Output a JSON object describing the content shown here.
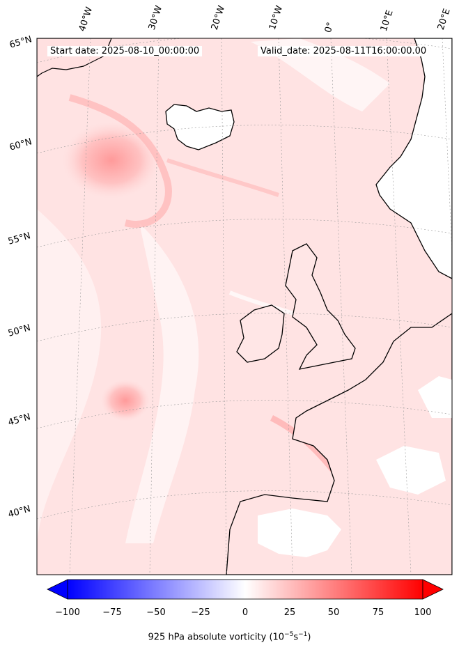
{
  "map": {
    "start_date": "Start date: 2025-08-10_00:00:00",
    "valid_date": "Valid_date: 2025-08-11T16:00:00.00",
    "lon_labels": [
      "40°W",
      "30°W",
      "20°W",
      "10°W",
      "0°",
      "10°E",
      "20°E"
    ],
    "lat_labels": [
      "65°N",
      "60°N",
      "55°N",
      "50°N",
      "45°N",
      "40°N"
    ]
  },
  "colorbar": {
    "ticks": [
      "−100",
      "−75",
      "−50",
      "−25",
      "0",
      "25",
      "50",
      "75",
      "100"
    ],
    "label_main": "925 hPa absolute vorticity (10",
    "label_exp1": "−5",
    "label_mid": "s",
    "label_exp2": "−1",
    "label_end": ")",
    "min_color": "#0000ff",
    "mid_color": "#ffffff",
    "max_color": "#ff0000",
    "range": [
      -100,
      100
    ]
  }
}
